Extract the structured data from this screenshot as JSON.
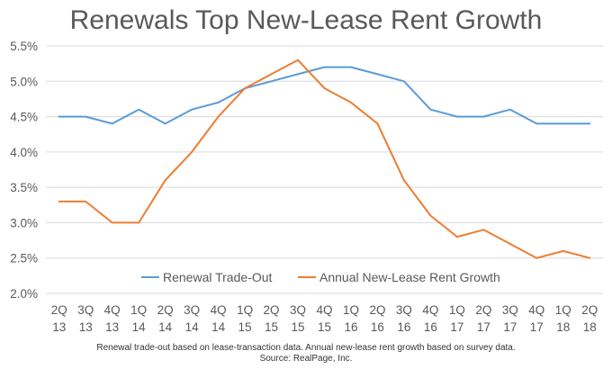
{
  "chart_data": {
    "type": "line",
    "title": "Renewals Top New-Lease Rent Growth",
    "categories": [
      [
        "2Q",
        "13"
      ],
      [
        "3Q",
        "13"
      ],
      [
        "4Q",
        "13"
      ],
      [
        "1Q",
        "14"
      ],
      [
        "2Q",
        "14"
      ],
      [
        "3Q",
        "14"
      ],
      [
        "4Q",
        "14"
      ],
      [
        "1Q",
        "15"
      ],
      [
        "2Q",
        "15"
      ],
      [
        "3Q",
        "15"
      ],
      [
        "4Q",
        "15"
      ],
      [
        "1Q",
        "16"
      ],
      [
        "2Q",
        "16"
      ],
      [
        "3Q",
        "16"
      ],
      [
        "4Q",
        "16"
      ],
      [
        "1Q",
        "17"
      ],
      [
        "2Q",
        "17"
      ],
      [
        "3Q",
        "17"
      ],
      [
        "4Q",
        "17"
      ],
      [
        "1Q",
        "18"
      ],
      [
        "2Q",
        "18"
      ]
    ],
    "ylim": [
      2.0,
      5.5
    ],
    "yticks": [
      "2.0%",
      "2.5%",
      "3.0%",
      "3.5%",
      "4.0%",
      "4.5%",
      "5.0%",
      "5.5%"
    ],
    "ytick_values": [
      2.0,
      2.5,
      3.0,
      3.5,
      4.0,
      4.5,
      5.0,
      5.5
    ],
    "grid": true,
    "legend_position": "bottom-center inside plot",
    "series": [
      {
        "name": "Renewal Trade-Out",
        "color": "#5B9BD5",
        "values": [
          4.5,
          4.5,
          4.4,
          4.6,
          4.4,
          4.6,
          4.7,
          4.9,
          5.0,
          5.1,
          5.2,
          5.2,
          5.1,
          5.0,
          4.6,
          4.5,
          4.5,
          4.6,
          4.4,
          4.4,
          4.4
        ]
      },
      {
        "name": "Annual New-Lease Rent Growth",
        "color": "#ED7D31",
        "values": [
          3.3,
          3.3,
          3.0,
          3.0,
          3.6,
          4.0,
          4.5,
          4.9,
          5.1,
          5.3,
          4.9,
          4.7,
          4.4,
          3.6,
          3.1,
          2.8,
          2.9,
          2.7,
          2.5,
          2.6,
          2.5
        ]
      }
    ],
    "footnotes": [
      "Renewal trade-out based on lease-transaction data. Annual new-lease rent growth based on survey data.",
      "Source: RealPage, Inc."
    ]
  }
}
